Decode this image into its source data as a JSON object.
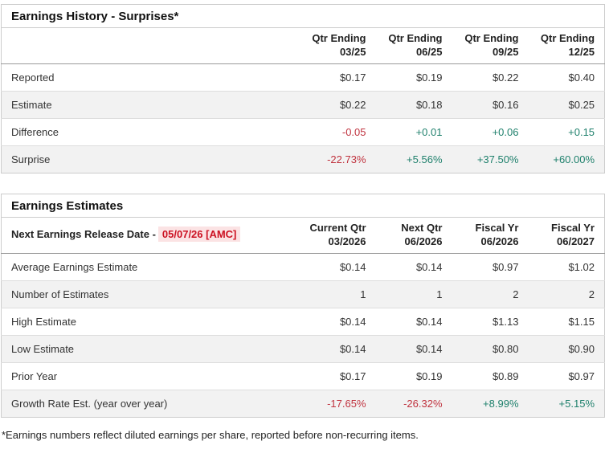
{
  "colors": {
    "negative": "#c0333f",
    "positive": "#20816d",
    "release_date_text": "#cc1122",
    "release_date_highlight": "#fbe3e4",
    "alt_row_bg": "#f2f2f2",
    "border": "#cccccc"
  },
  "surprises_table": {
    "title": "Earnings History - Surprises*",
    "columns": [
      {
        "line1": "Qtr Ending",
        "line2": "03/25"
      },
      {
        "line1": "Qtr Ending",
        "line2": "06/25"
      },
      {
        "line1": "Qtr Ending",
        "line2": "09/25"
      },
      {
        "line1": "Qtr Ending",
        "line2": "12/25"
      }
    ],
    "rows": [
      {
        "label": "Reported",
        "values": [
          "$0.17",
          "$0.19",
          "$0.22",
          "$0.40"
        ],
        "tones": [
          "",
          "",
          "",
          ""
        ]
      },
      {
        "label": "Estimate",
        "values": [
          "$0.22",
          "$0.18",
          "$0.16",
          "$0.25"
        ],
        "tones": [
          "",
          "",
          "",
          ""
        ]
      },
      {
        "label": "Difference",
        "values": [
          "-0.05",
          "+0.01",
          "+0.06",
          "+0.15"
        ],
        "tones": [
          "neg",
          "pos",
          "pos",
          "pos"
        ]
      },
      {
        "label": "Surprise",
        "values": [
          "-22.73%",
          "+5.56%",
          "+37.50%",
          "+60.00%"
        ],
        "tones": [
          "neg",
          "pos",
          "pos",
          "pos"
        ]
      }
    ]
  },
  "estimates_table": {
    "title": "Earnings Estimates",
    "release_label": "Next Earnings Release Date -",
    "release_date": "05/07/26 [AMC]",
    "columns": [
      {
        "line1": "Current Qtr",
        "line2": "03/2026"
      },
      {
        "line1": "Next Qtr",
        "line2": "06/2026"
      },
      {
        "line1": "Fiscal Yr",
        "line2": "06/2026"
      },
      {
        "line1": "Fiscal Yr",
        "line2": "06/2027"
      }
    ],
    "rows": [
      {
        "label": "Average Earnings Estimate",
        "values": [
          "$0.14",
          "$0.14",
          "$0.97",
          "$1.02"
        ],
        "tones": [
          "",
          "",
          "",
          ""
        ]
      },
      {
        "label": "Number of Estimates",
        "values": [
          "1",
          "1",
          "2",
          "2"
        ],
        "tones": [
          "",
          "",
          "",
          ""
        ]
      },
      {
        "label": "High Estimate",
        "values": [
          "$0.14",
          "$0.14",
          "$1.13",
          "$1.15"
        ],
        "tones": [
          "",
          "",
          "",
          ""
        ]
      },
      {
        "label": "Low Estimate",
        "values": [
          "$0.14",
          "$0.14",
          "$0.80",
          "$0.90"
        ],
        "tones": [
          "",
          "",
          "",
          ""
        ]
      },
      {
        "label": "Prior Year",
        "values": [
          "$0.17",
          "$0.19",
          "$0.89",
          "$0.97"
        ],
        "tones": [
          "",
          "",
          "",
          ""
        ]
      },
      {
        "label": "Growth Rate Est. (year over year)",
        "values": [
          "-17.65%",
          "-26.32%",
          "+8.99%",
          "+5.15%"
        ],
        "tones": [
          "neg",
          "neg",
          "pos",
          "pos"
        ]
      }
    ]
  },
  "footnote": "*Earnings numbers reflect diluted earnings per share, reported before non-recurring items."
}
